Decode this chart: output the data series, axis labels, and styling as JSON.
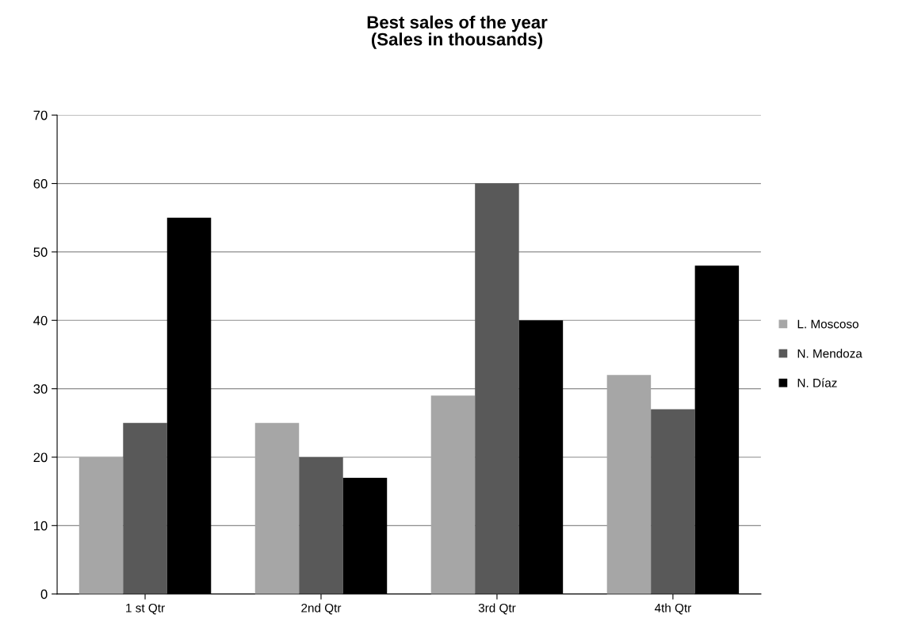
{
  "chart_data": {
    "type": "bar",
    "title": "Best sales of the year\n(Sales in thousands)",
    "categories": [
      "1 st Qtr",
      "2nd Qtr",
      "3rd Qtr",
      "4th Qtr"
    ],
    "series": [
      {
        "name": "L. Moscoso",
        "color": "#a6a6a6",
        "values": [
          20,
          25,
          29,
          32
        ]
      },
      {
        "name": "N. Mendoza",
        "color": "#595959",
        "values": [
          25,
          20,
          60,
          27
        ]
      },
      {
        "name": "N. Díaz",
        "color": "#000000",
        "values": [
          55,
          17,
          40,
          48
        ]
      }
    ],
    "ylim": [
      0,
      70
    ],
    "yticks": [
      0,
      10,
      20,
      30,
      40,
      50,
      60,
      70
    ],
    "grid": "y",
    "legend": "right"
  }
}
